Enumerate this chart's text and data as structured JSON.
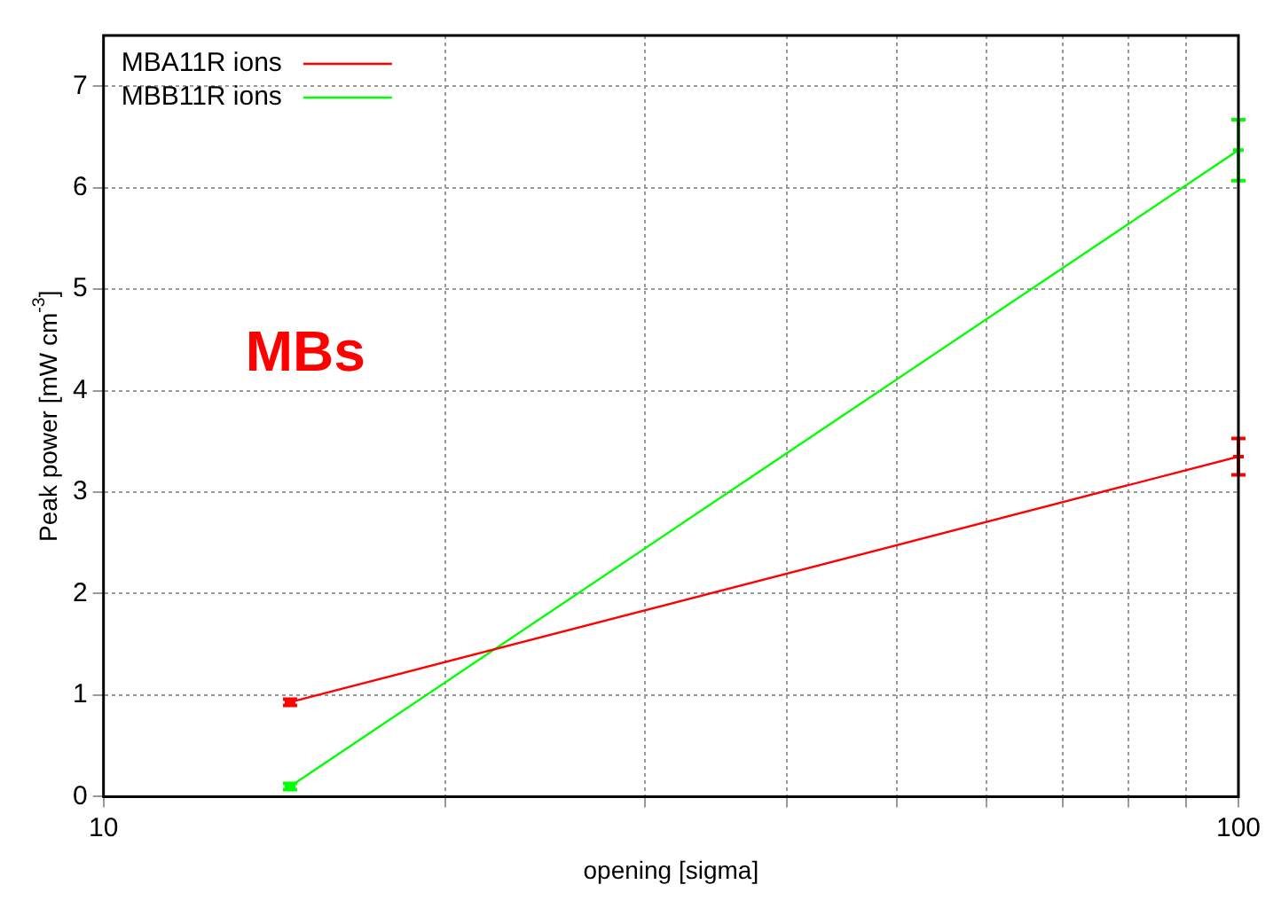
{
  "chart_data": {
    "type": "line",
    "xlabel": "opening [sigma]",
    "ylabel": "Peak power [mW cm$^{-3}$]",
    "x": [
      14.6,
      100
    ],
    "log": "x",
    "xlim": [
      10,
      100
    ],
    "xticks": [
      10,
      {
        "value": 20,
        "label": null
      },
      {
        "value": 30,
        "label": null
      },
      {
        "value": 40,
        "label": null
      },
      {
        "value": 50,
        "label": null
      },
      {
        "value": 60,
        "label": null
      },
      {
        "value": 70,
        "label": null
      },
      {
        "value": 80,
        "label": null
      },
      {
        "value": 90,
        "label": null
      },
      100
    ],
    "ylim": [
      0,
      7.5
    ],
    "yticks": [
      0,
      1,
      2,
      3,
      4,
      5,
      6,
      7
    ],
    "grid": true,
    "legend": "top left",
    "marker": "none",
    "line_style": "solid",
    "series": [
      {
        "name": "MBA11R ions",
        "color": "#ff0000",
        "values": [
          0.93,
          3.35
        ],
        "errors": [
          0.03,
          0.18
        ]
      },
      {
        "name": "MBB11R ions",
        "color": "#00ff00",
        "values": [
          0.1,
          6.37
        ],
        "errors": [
          0.03,
          0.3
        ]
      }
    ],
    "annotations": [
      "MBs"
    ]
  }
}
